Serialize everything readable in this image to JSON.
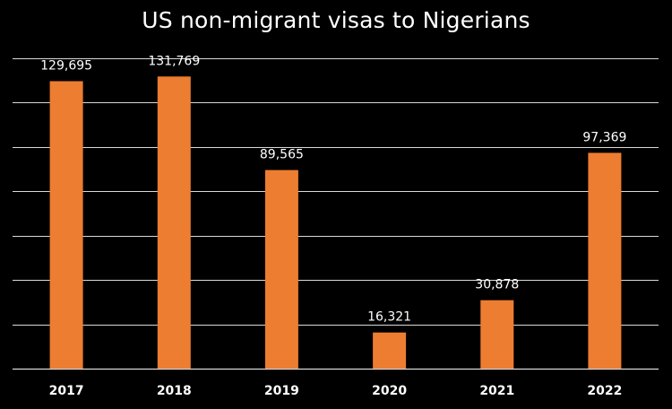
{
  "chart_data": {
    "type": "bar",
    "title": "US non-migrant visas to Nigerians",
    "categories": [
      "2017",
      "2018",
      "2019",
      "2020",
      "2021",
      "2022"
    ],
    "values": [
      129695,
      131769,
      89565,
      16321,
      30878,
      97369
    ],
    "value_labels": [
      "129,695",
      "131,769",
      "89,565",
      "16,321",
      "30,878",
      "97,369"
    ],
    "xlabel": "",
    "ylabel": "",
    "ylim": [
      0,
      140000
    ],
    "grid": true,
    "legend": "none",
    "bar_color": "#ED7D31",
    "grid_color": "#d9d9d9",
    "background_color": "#000000",
    "text_color": "#ffffff"
  }
}
